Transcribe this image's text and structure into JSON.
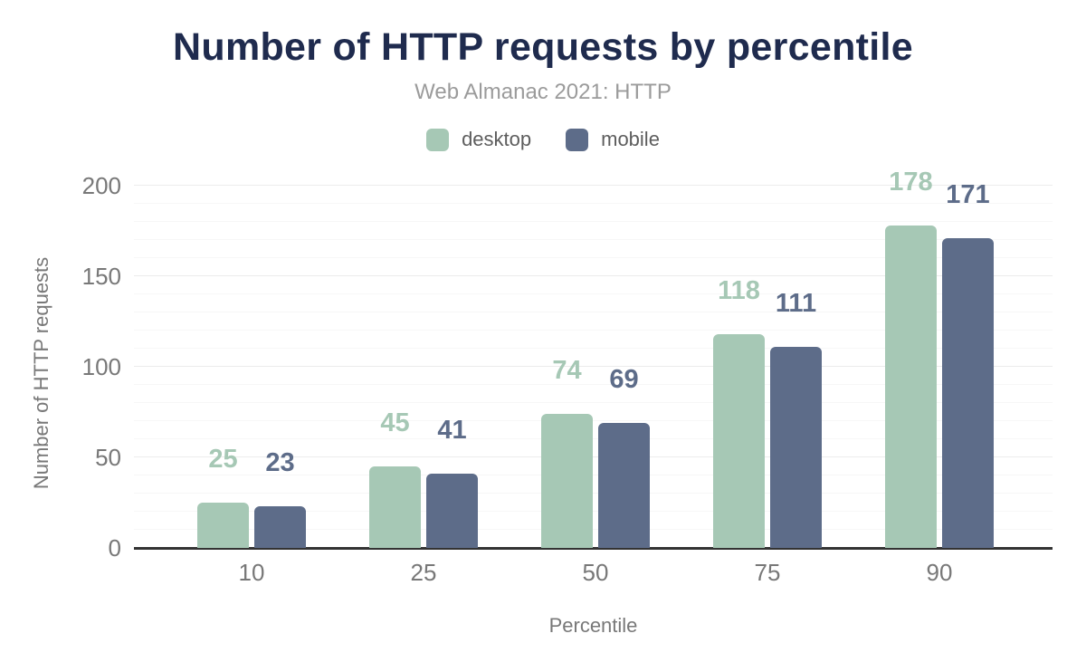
{
  "header": {
    "title": "Number of HTTP requests by percentile",
    "subtitle": "Web Almanac 2021: HTTP"
  },
  "chart_data": {
    "type": "bar",
    "title": "Number of HTTP requests by percentile",
    "subtitle": "Web Almanac 2021: HTTP",
    "categories": [
      "10",
      "25",
      "50",
      "75",
      "90"
    ],
    "series": [
      {
        "name": "desktop",
        "color": "#a6c8b5",
        "values": [
          25,
          45,
          74,
          118,
          178
        ]
      },
      {
        "name": "mobile",
        "color": "#5d6c89",
        "values": [
          23,
          41,
          69,
          111,
          171
        ]
      }
    ],
    "xlabel": "Percentile",
    "ylabel": "Number of HTTP requests",
    "ylim": [
      0,
      200
    ],
    "yticks": [
      0,
      50,
      100,
      150,
      200
    ],
    "minor_tick_interval": 10,
    "grid": true,
    "legend_position": "top",
    "data_labels": true
  },
  "colors": {
    "title": "#1f2b4e",
    "subtitle": "#9b9b9b",
    "legend_text": "#5d5d5d",
    "axis_text": "#787878",
    "axis_line": "#333333",
    "grid_major": "#ececec",
    "grid_minor": "#f7f7f7",
    "desktop": "#a6c8b5",
    "mobile": "#5d6c89",
    "background": "#ffffff"
  }
}
